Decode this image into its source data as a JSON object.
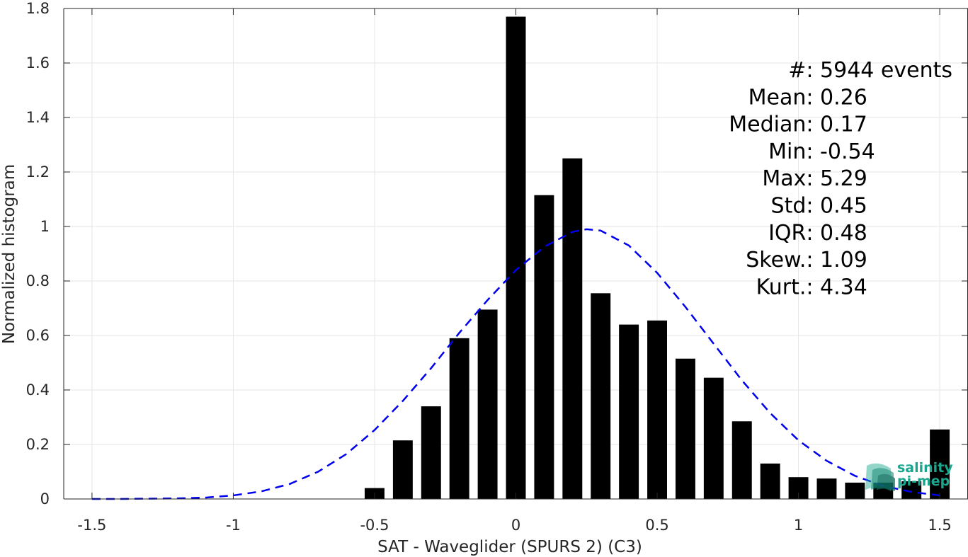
{
  "chart_data": {
    "type": "bar",
    "xlabel": "SAT - Waveglider (SPURS 2) (C3)",
    "ylabel": "Normalized histogram",
    "xlim": [
      -1.6,
      1.6
    ],
    "ylim": [
      0,
      1.8
    ],
    "xticks": [
      -1.5,
      -1,
      -0.5,
      0,
      0.5,
      1,
      1.5
    ],
    "yticks": [
      0,
      0.2,
      0.4,
      0.6,
      0.8,
      1,
      1.2,
      1.4,
      1.6,
      1.8
    ],
    "grid": true,
    "bar_width": 0.07,
    "bars": {
      "x": [
        -0.5,
        -0.4,
        -0.3,
        -0.2,
        -0.1,
        0,
        0.1,
        0.2,
        0.3,
        0.4,
        0.5,
        0.6,
        0.7,
        0.8,
        0.9,
        1.0,
        1.1,
        1.2,
        1.3,
        1.4,
        1.5
      ],
      "values": [
        0.04,
        0.215,
        0.34,
        0.59,
        0.695,
        1.77,
        1.115,
        1.25,
        0.755,
        0.64,
        0.655,
        0.515,
        0.445,
        0.285,
        0.13,
        0.08,
        0.075,
        0.06,
        0.06,
        0.065,
        0.255
      ],
      "color": "#000000"
    },
    "fit_curve": {
      "style": "dashed",
      "color": "#0000ee",
      "x": [
        -1.5,
        -1.4,
        -1.3,
        -1.2,
        -1.1,
        -1.0,
        -0.9,
        -0.8,
        -0.7,
        -0.6,
        -0.5,
        -0.4,
        -0.3,
        -0.2,
        -0.1,
        0.0,
        0.1,
        0.2,
        0.25,
        0.3,
        0.4,
        0.5,
        0.6,
        0.7,
        0.8,
        0.9,
        1.0,
        1.1,
        1.2,
        1.3,
        1.4,
        1.5
      ],
      "y": [
        0.0,
        0.0,
        0.001,
        0.002,
        0.005,
        0.013,
        0.028,
        0.055,
        0.1,
        0.165,
        0.253,
        0.36,
        0.48,
        0.61,
        0.73,
        0.84,
        0.925,
        0.98,
        0.99,
        0.985,
        0.93,
        0.83,
        0.705,
        0.57,
        0.435,
        0.315,
        0.215,
        0.14,
        0.085,
        0.048,
        0.026,
        0.013
      ]
    },
    "annotations": [
      {
        "label": "#  ",
        "value": ": 5944 events"
      },
      {
        "label": "Mean ",
        "value": ": 0.26"
      },
      {
        "label": "Median ",
        "value": ": 0.17"
      },
      {
        "label": "Min ",
        "value": ": -0.54"
      },
      {
        "label": "Max ",
        "value": ": 5.29"
      },
      {
        "label": "Std ",
        "value": ": 0.45"
      },
      {
        "label": "IQR ",
        "value": ": 0.48"
      },
      {
        "label": "Skew. ",
        "value": ": 1.09"
      },
      {
        "label": "Kurt. ",
        "value": ": 4.34"
      }
    ]
  },
  "logo": {
    "line1": "salinity",
    "line2": "pi-mep",
    "color": "#1aa68e"
  }
}
